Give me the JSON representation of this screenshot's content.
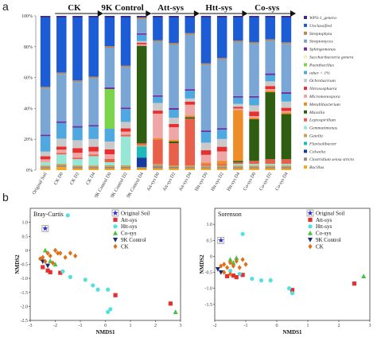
{
  "panel_a": {
    "letter": "a"
  },
  "panel_b": {
    "letter": "b"
  },
  "chart_data": [
    {
      "type": "bar",
      "stacked": true,
      "categories": [
        "Original Soil",
        "CK D0",
        "CK D2",
        "CK D4",
        "9K Control D0",
        "9K Control D2",
        "9K Control D4",
        "Att-sys D0",
        "Att-sys D2",
        "Att-sys D4",
        "Htt-sys D0",
        "Htt-sys D2",
        "Htt-sys D4",
        "Co-sys D0",
        "Co-sys D2",
        "Co-sys D4"
      ],
      "group_labels": [
        {
          "label": "CK",
          "from": 1,
          "to": 3
        },
        {
          "label": "9K Control",
          "from": 4,
          "to": 6
        },
        {
          "label": "Att-sys",
          "from": 7,
          "to": 9
        },
        {
          "label": "Htt-sys",
          "from": 10,
          "to": 12
        },
        {
          "label": "Co-sys",
          "from": 13,
          "to": 15
        }
      ],
      "yticks": [
        "0%",
        "20%",
        "40%",
        "60%",
        "80%",
        "100%"
      ],
      "ylim": [
        0,
        100
      ],
      "legend_position": "right",
      "series": [
        {
          "name": "Bacillus",
          "color": "#f6a623",
          "values": [
            1,
            2,
            1,
            1,
            1,
            1,
            1,
            1,
            1,
            1,
            1,
            1,
            1,
            1,
            1,
            1
          ]
        },
        {
          "name": "Clostridium sensu stricto",
          "color": "#9c8c7a",
          "values": [
            1,
            1,
            1,
            1,
            1,
            1,
            1,
            2,
            1,
            1,
            1,
            1,
            1,
            1,
            1,
            1
          ]
        },
        {
          "name": "Colwelia",
          "color": "#153a9b",
          "values": [
            0,
            0,
            0,
            0,
            0,
            0,
            6,
            0,
            0,
            0,
            0,
            0,
            0,
            0,
            0,
            0
          ]
        },
        {
          "name": "Flavisolibacter",
          "color": "#1fb9b9",
          "values": [
            0,
            0,
            0,
            0,
            0,
            0,
            7,
            0,
            0,
            0,
            0,
            0,
            0,
            0,
            0,
            0
          ]
        },
        {
          "name": "Gaiella",
          "color": "#c8a15a",
          "values": [
            1,
            1,
            1,
            1,
            1,
            1,
            1,
            1,
            1,
            1,
            1,
            1,
            1,
            1,
            1,
            1
          ]
        },
        {
          "name": "Gemmatimonas",
          "color": "#98e6d6",
          "values": [
            2,
            6,
            4,
            6,
            2,
            18,
            0,
            0,
            0,
            0,
            0,
            0,
            1,
            1,
            1,
            1
          ]
        },
        {
          "name": "Leptospirillum",
          "color": "#e8604a",
          "values": [
            0,
            1,
            1,
            1,
            2,
            1,
            1,
            16,
            14,
            30,
            1,
            1,
            1,
            2,
            3,
            3
          ]
        },
        {
          "name": "Massilia",
          "color": "#2f5e12",
          "values": [
            0,
            0,
            0,
            0,
            0,
            0,
            62,
            0,
            1,
            1,
            0,
            0,
            1,
            27,
            43,
            29
          ]
        },
        {
          "name": "Metallibacterium",
          "color": "#ef8c2a",
          "values": [
            0,
            0,
            0,
            0,
            0,
            0,
            0,
            1,
            1,
            1,
            1,
            2,
            33,
            1,
            1,
            1
          ]
        },
        {
          "name": "Micromonospora",
          "color": "#eea6a6",
          "values": [
            2,
            2,
            3,
            2,
            3,
            2,
            1,
            16,
            8,
            7,
            5,
            6,
            1,
            1,
            1,
            1
          ]
        },
        {
          "name": "Nitrososphaera",
          "color": "#e5302f",
          "values": [
            2,
            2,
            3,
            3,
            3,
            2,
            1,
            2,
            2,
            2,
            3,
            3,
            1,
            3,
            2,
            2
          ]
        },
        {
          "name": "Ochrobactrum",
          "color": "#c9c9c9",
          "values": [
            3,
            5,
            5,
            5,
            5,
            4,
            1,
            5,
            4,
            2,
            5,
            5,
            2,
            4,
            3,
            4
          ]
        },
        {
          "name": "other < 1%",
          "color": "#4fa8e0",
          "values": [
            10,
            10,
            8,
            8,
            8,
            8,
            4,
            4,
            5,
            5,
            7,
            6,
            4,
            5,
            4,
            5
          ]
        },
        {
          "name": "Paenibacillus",
          "color": "#7bd44b",
          "values": [
            0,
            0,
            0,
            0,
            25,
            0,
            0,
            0,
            0,
            0,
            0,
            0,
            0,
            0,
            0,
            0
          ]
        },
        {
          "name": "Saccharibacteria genera",
          "color": "#f2f2b8",
          "values": [
            0,
            0,
            0,
            0,
            0,
            0,
            0,
            0,
            0,
            0,
            0,
            0,
            0,
            0,
            0,
            0
          ]
        },
        {
          "name": "Sphingomonas",
          "color": "#7030a0",
          "values": [
            1,
            1,
            1,
            1,
            1,
            1,
            1,
            1,
            1,
            1,
            1,
            1,
            1,
            1,
            1,
            1
          ]
        },
        {
          "name": "Streptomyces",
          "color": "#7aa6d6",
          "values": [
            30,
            30,
            28,
            30,
            25,
            25,
            9,
            35,
            40,
            35,
            43,
            44,
            35,
            34,
            21,
            31
          ]
        },
        {
          "name": "Streptophyta",
          "color": "#b5895c",
          "values": [
            1,
            1,
            1,
            1,
            1,
            1,
            1,
            1,
            1,
            1,
            1,
            1,
            1,
            1,
            1,
            1
          ]
        },
        {
          "name": "Unclassified",
          "color": "#1c5cd4",
          "values": [
            45,
            35,
            40,
            38,
            18,
            30,
            0,
            15,
            16,
            10,
            30,
            26,
            15,
            16,
            14,
            16
          ]
        },
        {
          "name": "WPS-1_genera",
          "color": "#3a2a8a",
          "values": [
            1,
            1,
            1,
            1,
            1,
            1,
            1,
            1,
            1,
            1,
            1,
            1,
            1,
            1,
            1,
            1
          ]
        }
      ]
    },
    {
      "type": "scatter",
      "title": "Bray-Curtis",
      "xlabel": "NMDS1",
      "ylabel": "NMDS2",
      "xlim": [
        -3,
        3
      ],
      "ylim": [
        -2.5,
        1.5
      ],
      "xticks": [
        -3,
        -2,
        -1,
        0,
        1,
        2,
        3
      ],
      "yticks": [
        1.0,
        0.5,
        0,
        -0.5,
        -1.0,
        -1.5,
        -2.0,
        -2.5
      ],
      "yticklabels": [
        "1.0",
        "0.5",
        "0",
        "-0.5",
        "-1.0",
        "-1.5",
        "-2.0",
        "-2.5"
      ],
      "legend_position": "top-right",
      "series": [
        {
          "name": "Original Soil",
          "color": "#2d2fd0",
          "marker": "star",
          "points": [
            [
              -2.4,
              0.78
            ]
          ]
        },
        {
          "name": "Att-sys",
          "color": "#e53030",
          "marker": "square",
          "points": [
            [
              -2.3,
              -0.72
            ],
            [
              -2.2,
              -0.78
            ],
            [
              -1.8,
              -0.8
            ],
            [
              0.4,
              -1.6
            ],
            [
              2.6,
              -1.9
            ],
            [
              -2.5,
              -0.6
            ]
          ]
        },
        {
          "name": "Htt-sys",
          "color": "#54e0e0",
          "marker": "circle",
          "points": [
            [
              -1.5,
              1.25
            ],
            [
              -1.7,
              -0.75
            ],
            [
              -1.4,
              -0.95
            ],
            [
              -0.8,
              -1.05
            ],
            [
              -0.5,
              -1.25
            ],
            [
              0.1,
              -1.4
            ],
            [
              0.2,
              -2.1
            ],
            [
              0.1,
              -2.2
            ],
            [
              -0.3,
              -1.4
            ]
          ]
        },
        {
          "name": "Co-sys",
          "color": "#46c046",
          "marker": "triangle",
          "points": [
            [
              -2.4,
              0.0
            ],
            [
              -2.2,
              -0.38
            ],
            [
              -2.0,
              -0.5
            ],
            [
              2.8,
              -2.2
            ]
          ]
        },
        {
          "name": "9K Control",
          "color": "#1b2b7a",
          "marker": "triangle-down",
          "points": [
            [
              -2.5,
              -0.4
            ],
            [
              -2.3,
              -0.55
            ]
          ]
        },
        {
          "name": "CK",
          "color": "#e07018",
          "marker": "diamond",
          "points": [
            [
              -2.6,
              -0.3
            ],
            [
              -2.5,
              -0.25
            ],
            [
              -2.4,
              -0.4
            ],
            [
              -2.3,
              -0.1
            ],
            [
              -2.2,
              -0.2
            ],
            [
              -2.1,
              -0.45
            ],
            [
              -1.8,
              -0.1
            ],
            [
              -1.6,
              -0.25
            ],
            [
              -1.4,
              -0.1
            ],
            [
              -1.2,
              -0.2
            ],
            [
              -2.0,
              0.0
            ],
            [
              -1.9,
              -0.1
            ]
          ]
        }
      ]
    },
    {
      "type": "scatter",
      "title": "Sorenson",
      "xlabel": "NMDS1",
      "ylabel": "NMDS2",
      "xlim": [
        -2,
        3
      ],
      "ylim": [
        -2.0,
        1.5
      ],
      "xticks": [
        -2,
        -1,
        0,
        1,
        2,
        3
      ],
      "yticks": [
        1.0,
        0.5,
        0,
        -0.5,
        -1.0,
        -1.5
      ],
      "yticklabels": [
        "1.0",
        "0.5",
        "0",
        "-0.5",
        "-1.0",
        "-1.5"
      ],
      "legend_position": "top-right",
      "series": [
        {
          "name": "Original Soil",
          "color": "#2d2fd0",
          "marker": "star",
          "points": [
            [
              -1.8,
              0.5
            ]
          ]
        },
        {
          "name": "Att-sys",
          "color": "#e53030",
          "marker": "square",
          "points": [
            [
              -1.6,
              -0.62
            ],
            [
              -1.4,
              -0.6
            ],
            [
              -1.3,
              -0.65
            ],
            [
              -1.1,
              -0.58
            ],
            [
              0.5,
              -1.05
            ],
            [
              2.5,
              -0.85
            ]
          ]
        },
        {
          "name": "Htt-sys",
          "color": "#54e0e0",
          "marker": "circle",
          "points": [
            [
              -1.1,
              0.7
            ],
            [
              -1.2,
              -0.55
            ],
            [
              -0.8,
              -0.7
            ],
            [
              -0.5,
              -0.75
            ],
            [
              -0.2,
              -0.75
            ],
            [
              0.4,
              -1.0
            ],
            [
              0.5,
              -1.15
            ],
            [
              0.4,
              -1.0
            ],
            [
              -1.5,
              -0.45
            ]
          ]
        },
        {
          "name": "Co-sys",
          "color": "#46c046",
          "marker": "triangle",
          "points": [
            [
              -1.5,
              -0.1
            ],
            [
              -1.4,
              -0.2
            ],
            [
              -1.3,
              -0.05
            ],
            [
              2.8,
              -0.62
            ]
          ]
        },
        {
          "name": "9K Control",
          "color": "#1b2b7a",
          "marker": "triangle-down",
          "points": [
            [
              -1.9,
              -0.4
            ],
            [
              -1.8,
              -0.5
            ]
          ]
        },
        {
          "name": "CK",
          "color": "#e07018",
          "marker": "diamond",
          "points": [
            [
              -1.8,
              -0.3
            ],
            [
              -1.7,
              -0.25
            ],
            [
              -1.6,
              -0.35
            ],
            [
              -1.5,
              -0.2
            ],
            [
              -1.4,
              -0.3
            ],
            [
              -1.3,
              -0.15
            ],
            [
              -1.2,
              -0.35
            ],
            [
              -1.1,
              -0.1
            ],
            [
              -1.0,
              -0.25
            ],
            [
              -1.7,
              -0.5
            ],
            [
              -1.5,
              -0.55
            ]
          ]
        }
      ]
    }
  ]
}
